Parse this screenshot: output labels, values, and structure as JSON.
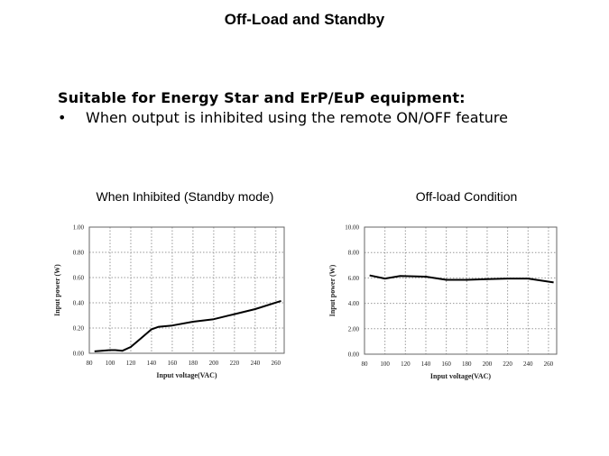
{
  "slide": {
    "title": "Off-Load and Standby",
    "subtitle": "Suitable for Energy Star and ErP/EuP equipment:",
    "bullet_symbol": "•",
    "bullet": "When output is inhibited using the remote ON/OFF feature"
  },
  "chart_data": [
    {
      "type": "line",
      "title": "When Inhibited (Standby mode)",
      "xlabel": "Input voltage(VAC)",
      "ylabel": "Input power (W)",
      "xlim": [
        80,
        268
      ],
      "ylim": [
        0,
        1
      ],
      "grid": true,
      "xticks": [
        "80",
        "100",
        "120",
        "140",
        "160",
        "180",
        "200",
        "220",
        "240",
        "260"
      ],
      "yticks": [
        "0.00",
        "0.20",
        "0.40",
        "0.60",
        "0.80",
        "1.00"
      ],
      "x": [
        85,
        100,
        105,
        112,
        120,
        130,
        140,
        147,
        160,
        180,
        200,
        220,
        240,
        265
      ],
      "y": [
        0.015,
        0.025,
        0.025,
        0.02,
        0.05,
        0.12,
        0.19,
        0.21,
        0.22,
        0.25,
        0.27,
        0.31,
        0.35,
        0.415
      ]
    },
    {
      "type": "line",
      "title": "Off-load Condition",
      "xlabel": "Input voltage(VAC)",
      "ylabel": "Input power (W)",
      "xlim": [
        80,
        268
      ],
      "ylim": [
        0,
        10
      ],
      "grid": true,
      "xticks": [
        "80",
        "100",
        "120",
        "140",
        "160",
        "180",
        "200",
        "220",
        "240",
        "260"
      ],
      "yticks": [
        "0.00",
        "2.00",
        "4.00",
        "6.00",
        "8.00",
        "10.00"
      ],
      "x": [
        85,
        100,
        115,
        140,
        160,
        180,
        200,
        220,
        240,
        265
      ],
      "y": [
        6.2,
        5.95,
        6.15,
        6.1,
        5.85,
        5.85,
        5.9,
        5.95,
        5.95,
        5.65
      ]
    }
  ]
}
